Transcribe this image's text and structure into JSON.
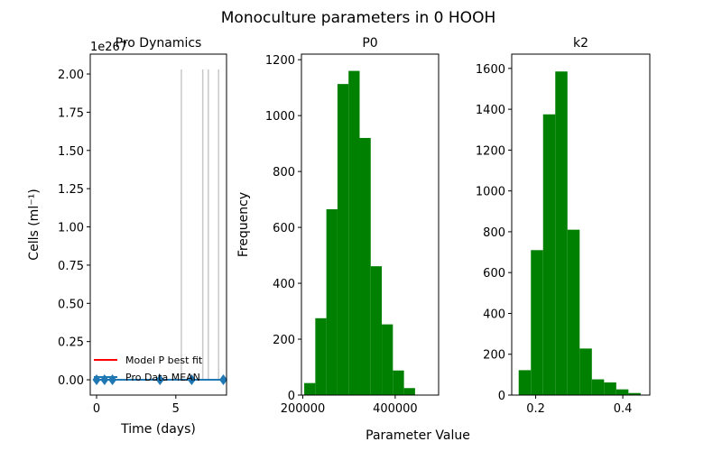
{
  "suptitle": "Monoculture parameters in 0 HOOH",
  "supxlabel": "Parameter Value",
  "chart_data": [
    {
      "type": "line",
      "title": "Pro Dynamics",
      "xlabel": "Time (days)",
      "ylabel": "Cells (ml⁻¹)",
      "y_offset_label": "1e267",
      "xlim": [
        -0.4,
        8.2
      ],
      "ylim": [
        -0.1,
        2.13
      ],
      "xticks": [
        0,
        5
      ],
      "yticks": [
        0.0,
        0.25,
        0.5,
        0.75,
        1.0,
        1.25,
        1.5,
        1.75,
        2.0
      ],
      "ytick_labels": [
        "0.00",
        "0.25",
        "0.50",
        "0.75",
        "1.00",
        "1.25",
        "1.50",
        "1.75",
        "2.00"
      ],
      "vertical_lines": [
        {
          "x": 5.35,
          "y0": 0.0,
          "y1": 2.03
        },
        {
          "x": 6.7,
          "y0": 0.0,
          "y1": 2.03
        },
        {
          "x": 7.05,
          "y0": 0.0,
          "y1": 2.03
        },
        {
          "x": 7.7,
          "y0": 0.0,
          "y1": 2.03
        }
      ],
      "series": [
        {
          "name": "Model P best fit",
          "color": "#ff0000",
          "style": "line",
          "x": [],
          "y": []
        },
        {
          "name": "Pro Data MEAN",
          "color": "#1f77b4",
          "style": "line-diamond",
          "x": [
            0,
            0.5,
            1.0,
            4.0,
            6.0,
            8.0
          ],
          "y": [
            0,
            0,
            0,
            0,
            0,
            0
          ]
        }
      ],
      "legend": "lower-left"
    },
    {
      "type": "histogram",
      "title": "P0",
      "xlabel": "",
      "ylabel": "Frequency",
      "color": "#008000",
      "xlim": [
        197000,
        494000
      ],
      "ylim": [
        0,
        1220
      ],
      "xticks": [
        200000,
        400000
      ],
      "xtick_labels": [
        "200000",
        "400000"
      ],
      "yticks": [
        0,
        200,
        400,
        600,
        800,
        1000,
        1200
      ],
      "bins": [
        {
          "x0": 203000,
          "x1": 227000,
          "count": 43
        },
        {
          "x0": 227000,
          "x1": 251000,
          "count": 275
        },
        {
          "x0": 251000,
          "x1": 275000,
          "count": 665
        },
        {
          "x0": 275000,
          "x1": 299000,
          "count": 1113
        },
        {
          "x0": 299000,
          "x1": 323000,
          "count": 1160
        },
        {
          "x0": 323000,
          "x1": 347000,
          "count": 920
        },
        {
          "x0": 347000,
          "x1": 371000,
          "count": 461
        },
        {
          "x0": 371000,
          "x1": 395000,
          "count": 253
        },
        {
          "x0": 395000,
          "x1": 419000,
          "count": 88
        },
        {
          "x0": 419000,
          "x1": 443000,
          "count": 25
        }
      ]
    },
    {
      "type": "histogram",
      "title": "k2",
      "xlabel": "",
      "ylabel": "",
      "color": "#008000",
      "xlim": [
        0.145,
        0.462
      ],
      "ylim": [
        0,
        1670
      ],
      "xticks": [
        0.2,
        0.4
      ],
      "xtick_labels": [
        "0.2",
        "0.4"
      ],
      "yticks": [
        0,
        200,
        400,
        600,
        800,
        1000,
        1200,
        1400,
        1600
      ],
      "bins": [
        {
          "x0": 0.161,
          "x1": 0.189,
          "count": 122
        },
        {
          "x0": 0.189,
          "x1": 0.217,
          "count": 710
        },
        {
          "x0": 0.217,
          "x1": 0.245,
          "count": 1375
        },
        {
          "x0": 0.245,
          "x1": 0.273,
          "count": 1585
        },
        {
          "x0": 0.273,
          "x1": 0.301,
          "count": 810
        },
        {
          "x0": 0.301,
          "x1": 0.329,
          "count": 228
        },
        {
          "x0": 0.329,
          "x1": 0.357,
          "count": 77
        },
        {
          "x0": 0.357,
          "x1": 0.385,
          "count": 62
        },
        {
          "x0": 0.385,
          "x1": 0.413,
          "count": 28
        },
        {
          "x0": 0.413,
          "x1": 0.441,
          "count": 10
        }
      ]
    }
  ]
}
